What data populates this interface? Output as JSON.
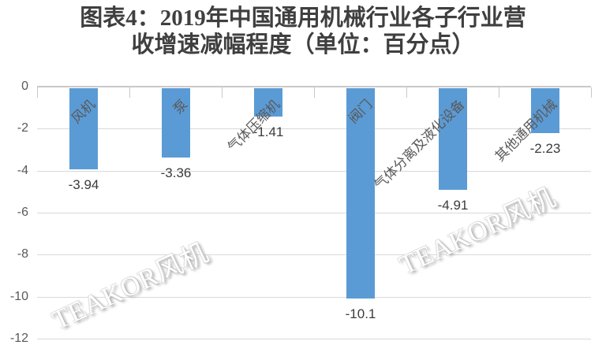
{
  "title": {
    "line1": "图表4：2019年中国通用机械行业各子行业营",
    "line2": "收增速减幅程度（单位：百分点）"
  },
  "chart_data": {
    "type": "bar",
    "title": "图表4：2019年中国通用机械行业各子行业营收增速减幅程度（单位：百分点）",
    "categories": [
      "风机",
      "泵",
      "气体压缩机",
      "阀门",
      "气体分离及液化设备",
      "其他通用机械"
    ],
    "values": [
      -3.94,
      -3.36,
      -1.41,
      -10.1,
      -4.91,
      -2.23
    ],
    "value_labels": [
      "-3.94",
      "-3.36",
      "-1.41",
      "-10.1",
      "-4.91",
      "-2.23"
    ],
    "xlabel": "",
    "ylabel": "",
    "ylim": [
      -12,
      0
    ],
    "yticks": [
      0,
      -2,
      -4,
      -6,
      -8,
      -10,
      -12
    ],
    "ytick_labels": [
      "0",
      "-2",
      "-4",
      "-6",
      "-8",
      "-10",
      "-12"
    ],
    "grid": true,
    "legend": "none",
    "bar_color": "#5b9bd5",
    "gridline_color": "#d9d9d9",
    "category_label_rotation_deg": -45,
    "value_label_position": "outside-end-below"
  },
  "watermark": {
    "text": "TEAKOR风机"
  },
  "colors": {
    "bar": "#5b9bd5",
    "gridline": "#d9d9d9",
    "axis_line": "#c9c9c9",
    "title_text": "#3f3f3f",
    "axis_text": "#595959",
    "value_text": "#3b3b3b",
    "watermark_text": "#ffffff",
    "background": "#ffffff"
  }
}
